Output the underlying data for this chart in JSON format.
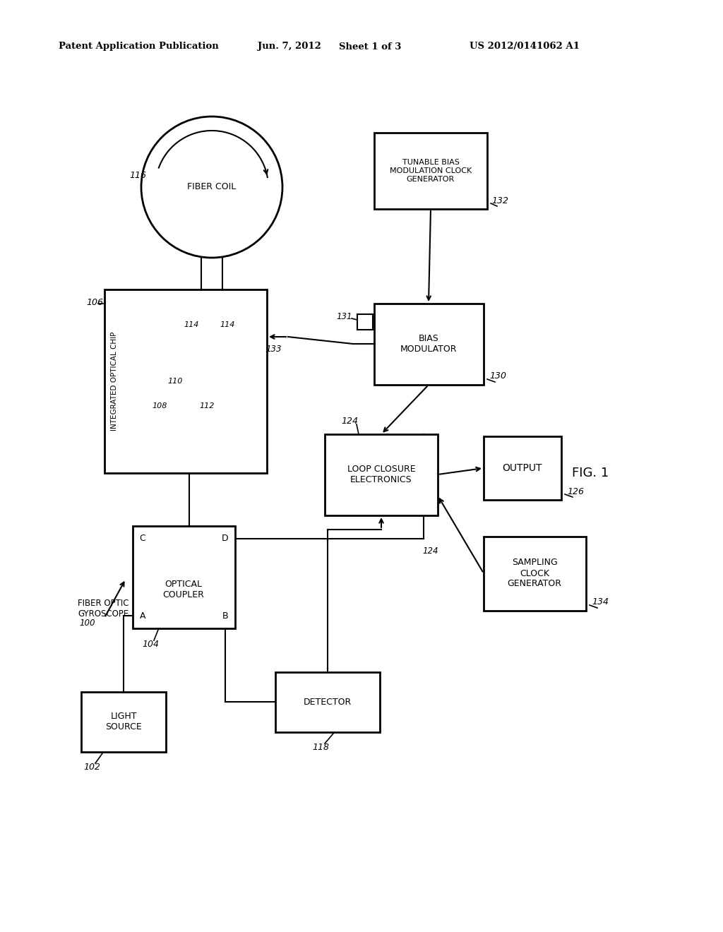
{
  "bg_color": "#ffffff",
  "header_text": "Patent Application Publication",
  "header_date": "Jun. 7, 2012",
  "header_sheet": "Sheet 1 of 3",
  "header_patent": "US 2012/0141062 A1",
  "fig_label": "FIG. 1",
  "gyro_label": "FIBER OPTIC\nGYROSCOPE",
  "gyro_number": "100",
  "light_source_label": "LIGHT\nSOURCE",
  "light_source_number": "102",
  "optical_coupler_label": "OPTICAL\nCOUPLER",
  "optical_coupler_number": "104",
  "integrated_chip_label": "INTEGRATED OPTICAL CHIP",
  "integrated_chip_number": "106",
  "fiber_coil_label": "FIBER COIL",
  "fiber_coil_number": "116",
  "detector_label": "DETECTOR",
  "detector_number": "118",
  "loop_closure_label": "LOOP CLOSURE\nELECTRONICS",
  "loop_closure_number": "124",
  "output_label": "OUTPUT",
  "output_number": "126",
  "bias_mod_label": "BIAS\nMODULATOR",
  "bias_mod_number": "130",
  "bias_mod_sub_number": "131",
  "tunable_label": "TUNABLE BIAS\nMODULATION CLOCK\nGENERATOR",
  "tunable_number": "132",
  "sampling_label": "SAMPLING\nCLOCK\nGENERATOR",
  "sampling_number": "134",
  "conn_133": "133",
  "num_108": "108",
  "num_110": "110",
  "num_112": "112",
  "num_114": "114"
}
